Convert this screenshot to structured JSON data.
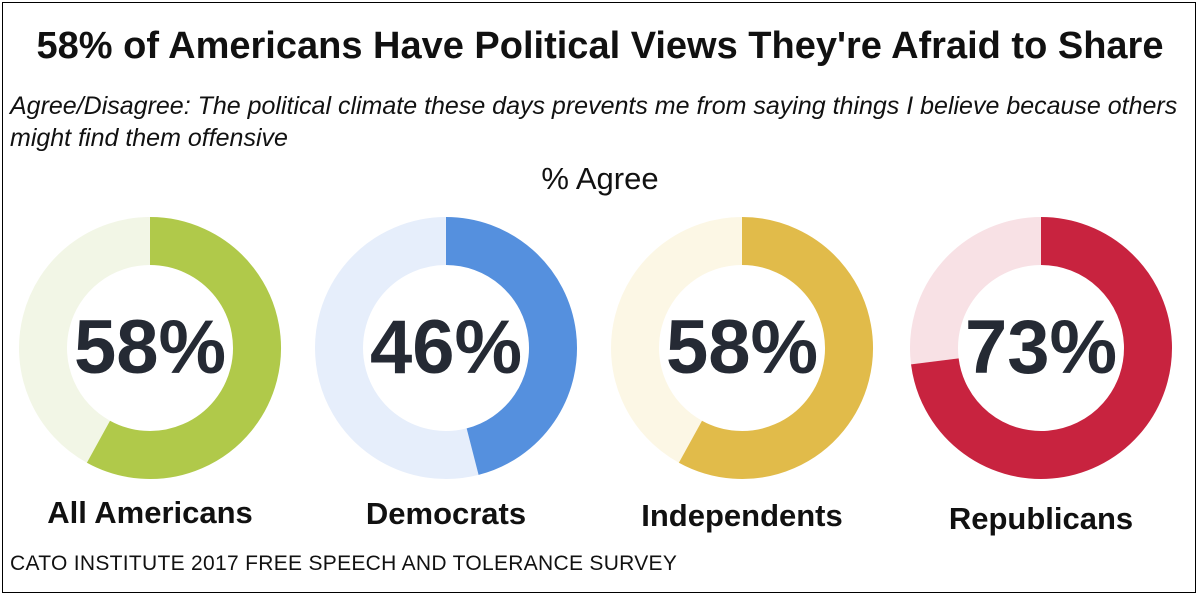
{
  "title": "58% of Americans Have Political Views They're Afraid to Share",
  "subtitle": "Agree/Disagree: The political climate these days prevents me from saying things I believe because others might find them offensive",
  "measure_label": "% Agree",
  "source": "CATO INSTITUTE 2017 FREE SPEECH AND TOLERANCE SURVEY",
  "chart_data": {
    "type": "pie",
    "title": "58% of Americans Have Political Views They're Afraid to Share",
    "subtitle": "Agree/Disagree: The political climate these days prevents me from saying things I believe because others might find them offensive",
    "measure": "% Agree",
    "categories": [
      "All Americans",
      "Democrats",
      "Independents",
      "Republicans"
    ],
    "values": [
      58,
      46,
      58,
      73
    ],
    "labels": [
      "58%",
      "46%",
      "58%",
      "73%"
    ],
    "colors": [
      "#b0c94a",
      "#5590de",
      "#e1bb4a",
      "#c8233f"
    ],
    "remainder_colors": [
      "#f2f6e6",
      "#e6eefb",
      "#fcf7e5",
      "#f8e1e5"
    ]
  }
}
